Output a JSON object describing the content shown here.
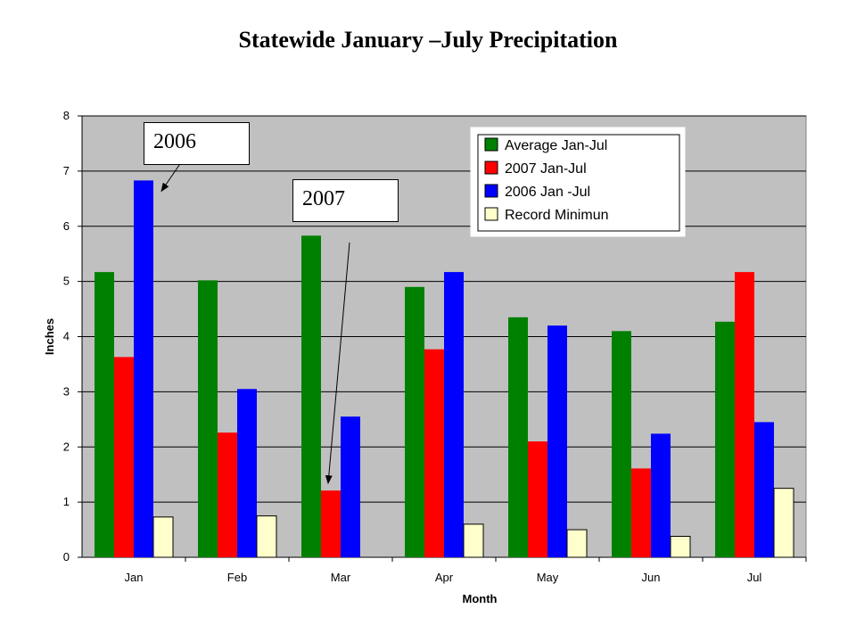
{
  "title": "Statewide January –July Precipitation",
  "chart_data": {
    "type": "bar",
    "title": "Statewide January –July Precipitation",
    "xlabel": "Month",
    "ylabel": "Inches",
    "categories": [
      "Jan",
      "Feb",
      "Mar",
      "Apr",
      "May",
      "Jun",
      "Jul"
    ],
    "ylim": [
      0,
      8
    ],
    "yticks": [
      0,
      1,
      2,
      3,
      4,
      5,
      6,
      7,
      8
    ],
    "grid": true,
    "legend_position": "top-right",
    "series": [
      {
        "name": "Average Jan-Jul",
        "color": "#008000",
        "values": [
          5.17,
          5.02,
          5.83,
          4.9,
          4.35,
          4.1,
          4.27
        ]
      },
      {
        "name": "2007 Jan-Jul",
        "color": "#ff0000",
        "values": [
          3.63,
          2.26,
          1.21,
          3.77,
          2.1,
          1.61,
          5.17
        ]
      },
      {
        "name": "2006 Jan -Jul",
        "color": "#0000ff",
        "values": [
          6.83,
          3.05,
          2.55,
          5.17,
          4.2,
          2.24,
          2.45
        ]
      },
      {
        "name": "Record Minimun",
        "color": "#ffffcc",
        "values": [
          0.73,
          0.75,
          0.0,
          0.6,
          0.5,
          0.38,
          1.25
        ]
      }
    ],
    "annotations": [
      {
        "text": "2006",
        "points_to": {
          "category": "Jan",
          "series": "2006 Jan -Jul"
        }
      },
      {
        "text": "2007",
        "points_to": {
          "category": "Mar",
          "series": "2007 Jan-Jul"
        }
      }
    ]
  },
  "colors": {
    "plot_bg": "#c0c0c0",
    "grid": "#000000"
  }
}
